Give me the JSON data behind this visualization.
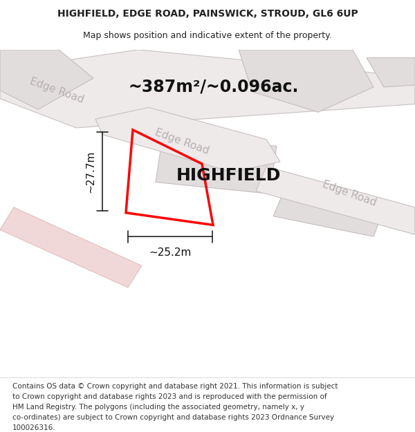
{
  "title_line1": "HIGHFIELD, EDGE ROAD, PAINSWICK, STROUD, GL6 6UP",
  "title_line2": "Map shows position and indicative extent of the property.",
  "footer_lines": [
    "Contains OS data © Crown copyright and database right 2021. This information is subject",
    "to Crown copyright and database rights 2023 and is reproduced with the permission of",
    "HM Land Registry. The polygons (including the associated geometry, namely x, y",
    "co-ordinates) are subject to Crown copyright and database rights 2023 Ordnance Survey",
    "100026316."
  ],
  "area_text": "~387m²/~0.096ac.",
  "property_label": "HIGHFIELD",
  "dim_vertical": "~27.7m",
  "dim_horizontal": "~25.2m",
  "background_color": "#ffffff",
  "road_fill_color": "#eeeaea",
  "road_border_color": "#c8c0c0",
  "road_label_color": "#b8b0b0",
  "red_outline_color": "#ff0000",
  "pink_road_color": "#f0d8d8",
  "pink_road_border": "#e0b8b8",
  "building_fill_color": "#e2dddd",
  "building_border_color": "#c0b8b8",
  "dim_line_color": "#222222",
  "title_fontsize": 10,
  "subtitle_fontsize": 9,
  "footer_fontsize": 7.5,
  "area_fontsize": 17,
  "property_label_fontsize": 18,
  "road_label_fontsize": 11,
  "dim_fontsize": 11
}
